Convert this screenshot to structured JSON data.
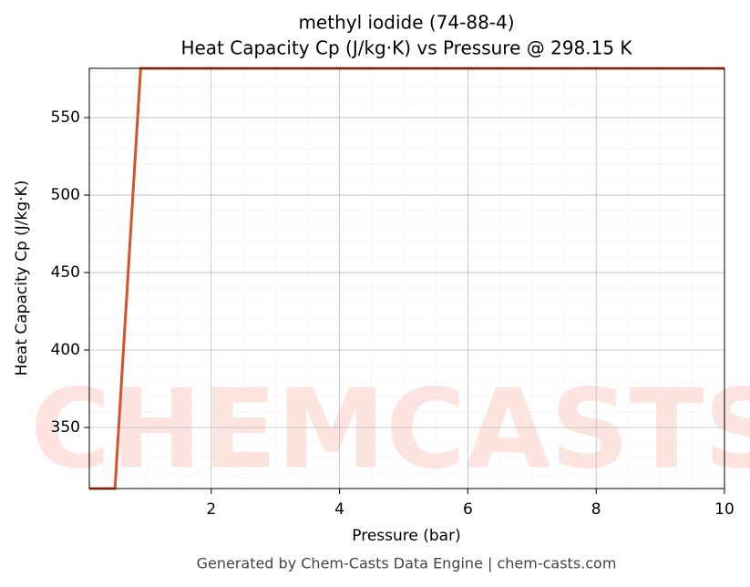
{
  "chart_data": {
    "type": "line",
    "title": "methyl iodide (74-88-4)",
    "subtitle": "Heat Capacity Cp (J/kg·K) vs Pressure @ 298.15 K",
    "x_label": "Pressure (bar)",
    "y_label": "Heat Capacity Cp (J/kg·K)",
    "footer": "Generated by Chem-Casts Data Engine | chem-casts.com",
    "watermark": "CHEMCASTS",
    "x": [
      0.1,
      0.5,
      0.9,
      10
    ],
    "series": [
      {
        "name": "Heat Capacity Cp",
        "color": "#d4532a",
        "values": [
          310.6,
          310.6,
          581.8,
          581.8
        ]
      }
    ],
    "xlim": [
      0.1,
      10
    ],
    "ylim": [
      310.6,
      581.8
    ],
    "xticks": [
      2,
      4,
      6,
      8,
      10
    ],
    "yticks": [
      350,
      400,
      450,
      500,
      550
    ],
    "grid": true
  }
}
